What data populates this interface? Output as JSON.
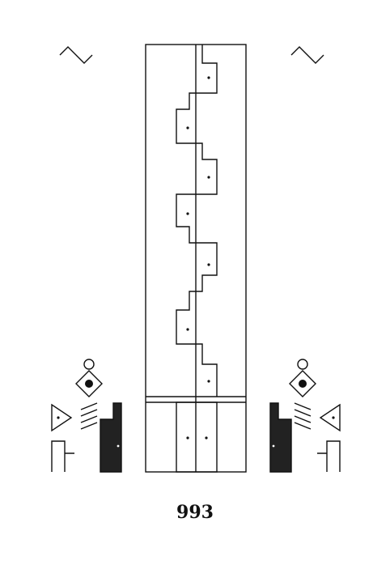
{
  "page": {
    "number": "993"
  },
  "colors": {
    "ink": "#111111",
    "paper": "#ffffff"
  },
  "symbols": {
    "top_left": "zigzag-glyph",
    "top_right": "zigzag-glyph",
    "bottom_left_group": [
      "circle-glyph",
      "diamond-dot-glyph",
      "triangle-dot-glyph",
      "comb-glyph",
      "filled-notched-block-glyph",
      "step-line-glyph"
    ],
    "bottom_right_group": [
      "circle-glyph",
      "diamond-dot-glyph",
      "triangle-dot-glyph",
      "comb-glyph",
      "filled-notched-block-glyph",
      "step-line-glyph"
    ]
  }
}
